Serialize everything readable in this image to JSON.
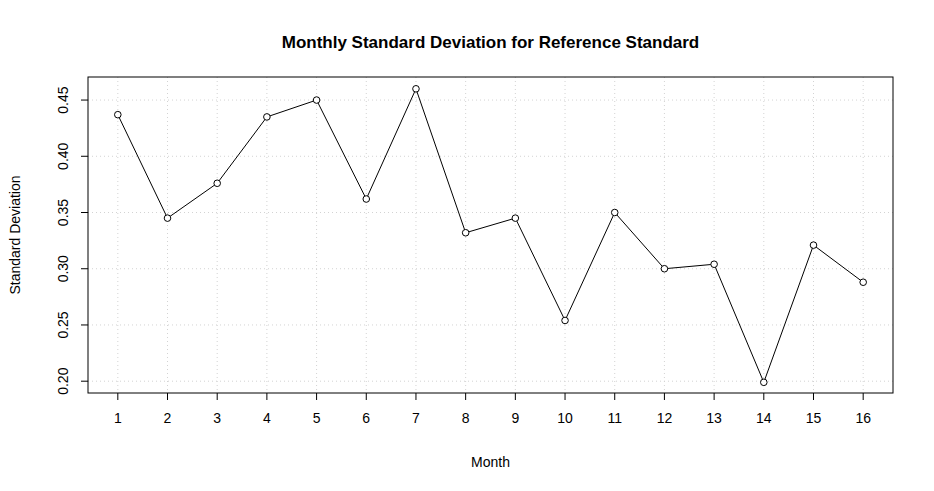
{
  "chart_data": {
    "type": "line",
    "title": "Monthly Standard Deviation for Reference Standard",
    "x_label": "Month",
    "y_label": "Standard Deviation",
    "x": [
      1,
      2,
      3,
      4,
      5,
      6,
      7,
      8,
      9,
      10,
      11,
      12,
      13,
      14,
      15,
      16
    ],
    "values": [
      0.437,
      0.345,
      0.376,
      0.435,
      0.45,
      0.362,
      0.46,
      0.332,
      0.345,
      0.254,
      0.35,
      0.3,
      0.304,
      0.199,
      0.321,
      0.288
    ],
    "color": "#000000",
    "marker": "circle",
    "line_style": "solid",
    "xlim": [
      0.4,
      16.6
    ],
    "xticks": [
      1,
      2,
      3,
      4,
      5,
      6,
      7,
      8,
      9,
      10,
      11,
      12,
      13,
      14,
      15,
      16
    ],
    "ylim": [
      0.1895,
      0.4705
    ],
    "yticks": [
      {
        "value": 0.2,
        "label": "0.20"
      },
      0.25,
      {
        "value": 0.3,
        "label": "0.30"
      },
      0.35,
      {
        "value": 0.4,
        "label": "0.40"
      },
      0.45
    ],
    "grid": true
  }
}
